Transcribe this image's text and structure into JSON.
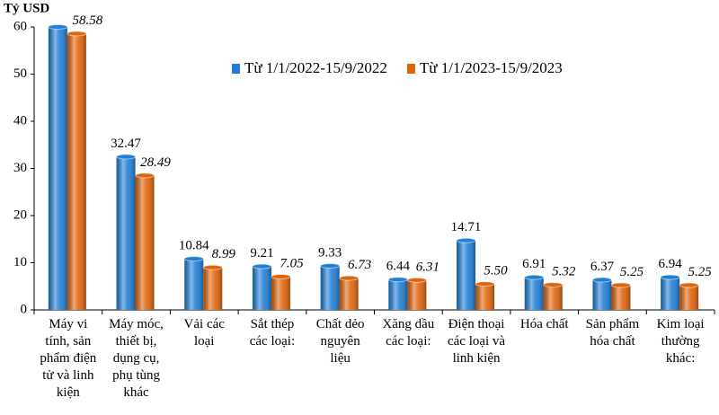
{
  "chart_data": {
    "type": "bar",
    "y_label": "Tỷ USD",
    "categories": [
      "Máy vi tính, sản phẩm điện tử và linh kiện",
      "Máy móc, thiết bị, dụng cụ, phụ tùng khác",
      "Vải các loại",
      "Sắt thép các loại:",
      "Chất dẻo nguyên liệu",
      "Xăng dầu các loại:",
      "Điện thoại các loại và linh kiện",
      "Hóa chất",
      "Sản phẩm hóa chất",
      "Kim loại thường khác:"
    ],
    "series": [
      {
        "name": "Từ 1/1/2022-15/9/2022",
        "color": "#1f7fd6",
        "values": [
          60,
          32.47,
          10.84,
          9.21,
          9.33,
          6.44,
          14.71,
          6.91,
          6.37,
          6.94
        ],
        "value_labels": [
          null,
          "32.47",
          "10.84",
          "9.21",
          "9.33",
          "6.44",
          "14.71",
          "6.91",
          "6.37",
          "6.94"
        ]
      },
      {
        "name": "Từ 1/1/2023-15/9/2023",
        "color": "#e0640c",
        "values": [
          58.58,
          28.49,
          8.99,
          7.05,
          6.73,
          6.31,
          5.5,
          5.32,
          5.25,
          5.25
        ],
        "value_labels": [
          "58.58",
          "28.49",
          "8.99",
          "7.05",
          "6.73",
          "6.31",
          "5.50",
          "5.32",
          "5.25",
          "5.25"
        ]
      }
    ],
    "ylim": [
      0,
      60
    ],
    "yticks": [
      0,
      10,
      20,
      30,
      40,
      50,
      60
    ],
    "grid": false,
    "legend": "top"
  }
}
